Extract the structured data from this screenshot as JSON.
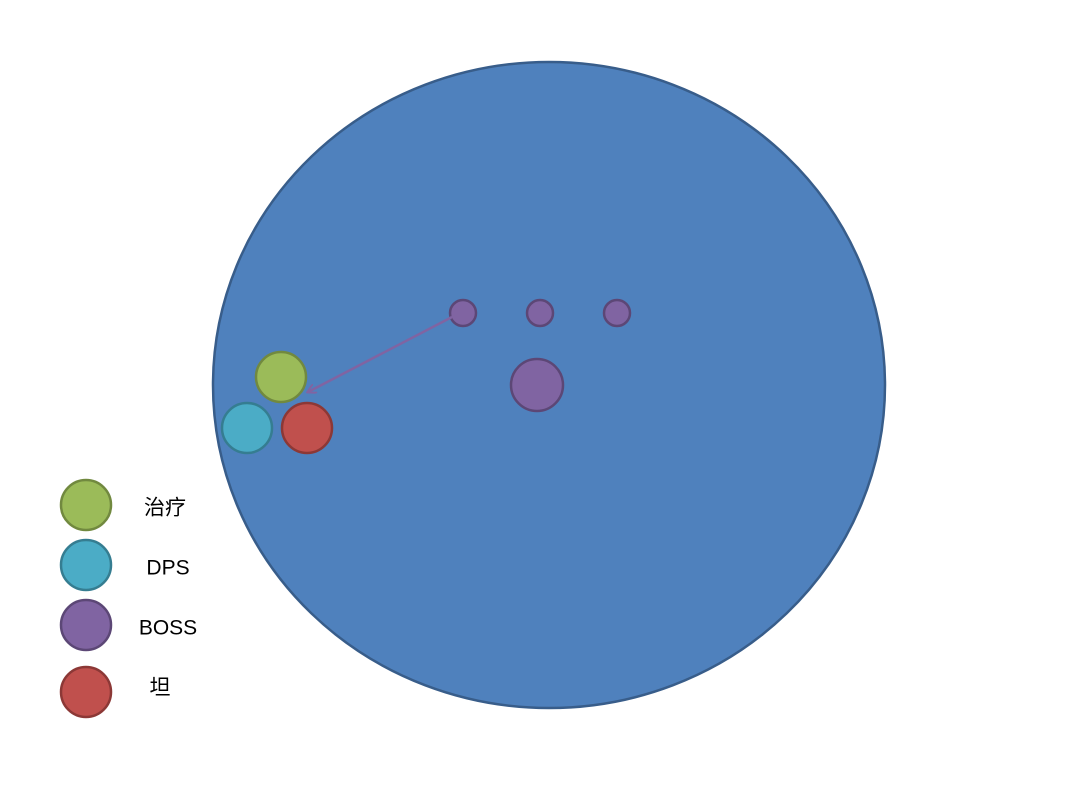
{
  "legend": [
    {
      "label": "治疗"
    },
    {
      "label": "DPS"
    },
    {
      "label": "BOSS"
    },
    {
      "label": "坦"
    }
  ]
}
